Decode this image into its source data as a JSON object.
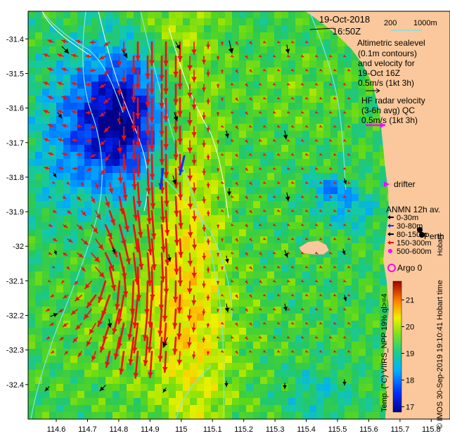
{
  "header": {
    "date": "19-Oct-2018",
    "time": "16:50Z"
  },
  "depth_contours": {
    "label_200": "200",
    "label_1000": "1000m",
    "line_color": "#7fe0e0"
  },
  "altimetry_legend": {
    "lines": [
      "Altimetric sealevel",
      "(0.1m contours)",
      "and velocity for",
      "19-Oct 16Z"
    ],
    "scale": "0.5m/s (1kt 3h)",
    "arrow_color": "#000000"
  },
  "hf_radar_legend": {
    "lines": [
      "HF radar velocity",
      "(3-6h avg) QC"
    ],
    "scale": "0.5m/s (1kt 3h)",
    "arrow_color": "#ff00ff"
  },
  "drifter_legend": {
    "label": "drifter",
    "color": "#ff00ff"
  },
  "anmn_legend": {
    "title": "ANMN 12h av.",
    "items": [
      {
        "label": "0-30m",
        "color": "#000000"
      },
      {
        "label": "30-80m",
        "color": "#1030ff"
      },
      {
        "label": "80-150m",
        "color": "#000000"
      },
      {
        "label": "150-300m",
        "color": "#ff0000"
      },
      {
        "label": "500-600m",
        "color": "#ff00ff"
      }
    ]
  },
  "argo_legend": {
    "label": "Argo 0",
    "color": "#ff00ff"
  },
  "place_labels": {
    "perth": "Perth",
    "hobart": "Hobart"
  },
  "colorbar": {
    "title": "Temp. (°C) VIIRS_NPP 19% ql>=4",
    "ticks": [
      17,
      18,
      19,
      20,
      21
    ],
    "range": [
      16.8,
      21.7
    ]
  },
  "credit": "© IMOS 30-Sep-2019 19:10:41 Hobart time",
  "axes": {
    "x_ticks": [
      "114.6",
      "114.7",
      "114.8",
      "114.9",
      "115",
      "115.1",
      "115.2",
      "115.3",
      "115.4",
      "115.5",
      "115.6",
      "115.7",
      "115.8"
    ],
    "y_ticks": [
      "-31.4",
      "-31.5",
      "-31.6",
      "-31.7",
      "-31.8",
      "-31.9",
      "-32",
      "-32.1",
      "-32.2",
      "-32.3",
      "-32.4"
    ],
    "x_range": [
      114.51,
      115.86
    ],
    "y_range": [
      -32.5,
      -31.32
    ]
  },
  "colors": {
    "land": "#fac89c",
    "hf_arrow": "#ee1111",
    "altimetry_arrow": "#000000"
  }
}
